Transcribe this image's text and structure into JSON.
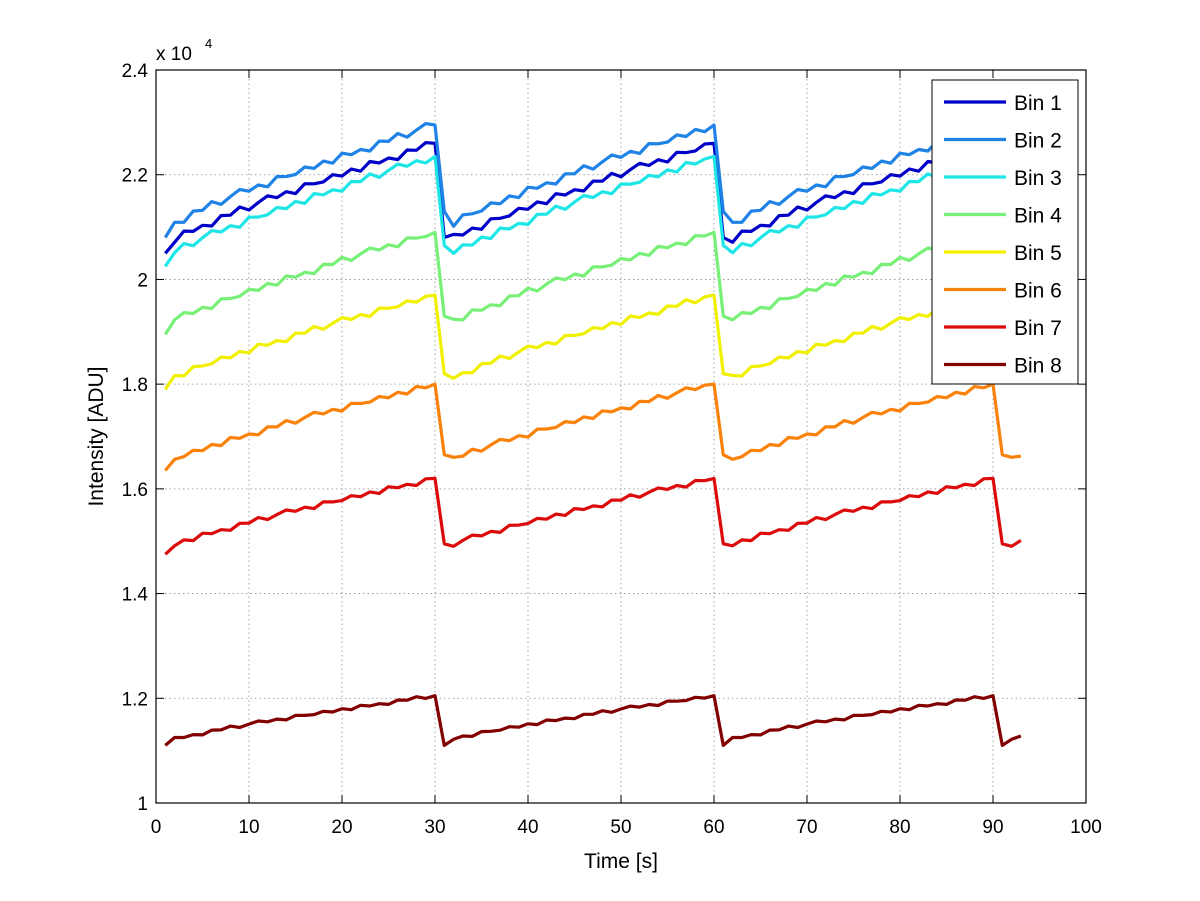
{
  "chart_data": {
    "type": "line",
    "title": "",
    "xlabel": "Time [s]",
    "ylabel": "Intensity [ADU]",
    "xlim": [
      0,
      100
    ],
    "ylim": [
      10000,
      24000
    ],
    "xticks": [
      0,
      10,
      20,
      30,
      40,
      50,
      60,
      70,
      80,
      90,
      100
    ],
    "yticks": [
      10000,
      12000,
      14000,
      16000,
      18000,
      20000,
      22000,
      24000
    ],
    "xtick_labels": [
      "0",
      "10",
      "20",
      "30",
      "40",
      "50",
      "60",
      "70",
      "80",
      "90",
      "100"
    ],
    "ytick_labels": [
      "1",
      "1.2",
      "1.4",
      "1.6",
      "1.8",
      "2",
      "2.2",
      "2.4"
    ],
    "y_scale_label": "x 10",
    "y_scale_exponent": "4",
    "grid": true,
    "legend_position": "top-right",
    "x": [
      1,
      93
    ],
    "series": [
      {
        "name": "Bin 1",
        "color": "#0000c8",
        "start": 20500,
        "end": 22600,
        "drop": 20800
      },
      {
        "name": "Bin 2",
        "color": "#1e82e6",
        "start": 20800,
        "end": 22950,
        "drop": 21300
      },
      {
        "name": "Bin 3",
        "color": "#1ee6e6",
        "start": 20250,
        "end": 22350,
        "drop": 20650
      },
      {
        "name": "Bin 4",
        "color": "#78f078",
        "start": 18950,
        "end": 20900,
        "drop": 19300
      },
      {
        "name": "Bin 5",
        "color": "#f0f000",
        "start": 17900,
        "end": 19700,
        "drop": 18200
      },
      {
        "name": "Bin 6",
        "color": "#fa820a",
        "start": 16350,
        "end": 18000,
        "drop": 16650
      },
      {
        "name": "Bin 7",
        "color": "#dc0a0a",
        "start": 14750,
        "end": 16200,
        "drop": 14950
      },
      {
        "name": "Bin 8",
        "color": "#820000",
        "start": 11100,
        "end": 12050,
        "drop": 11100
      }
    ]
  }
}
